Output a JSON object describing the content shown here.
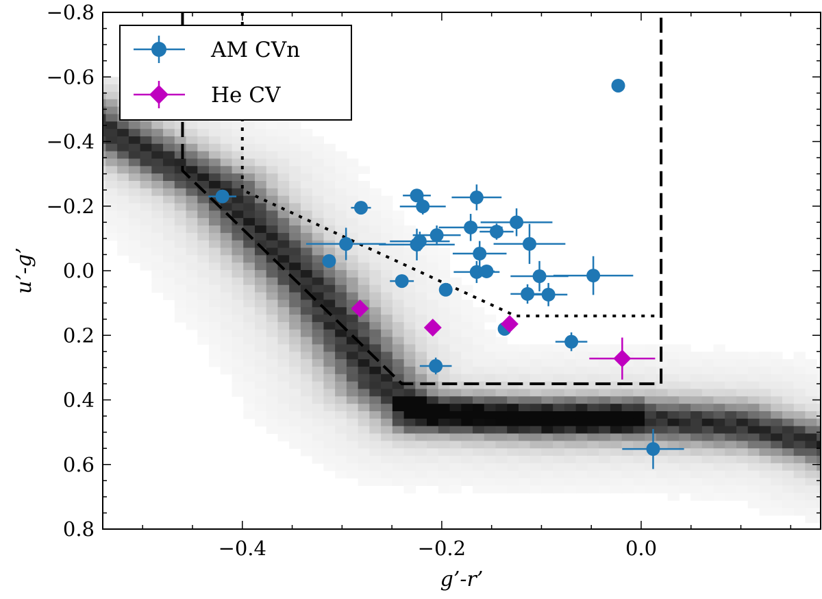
{
  "chart_data": {
    "type": "scatter",
    "title": "",
    "xlabel": "g’-r’",
    "ylabel": "u’-g’",
    "xlim": [
      -0.54,
      0.18
    ],
    "ylim": [
      0.8,
      -0.8
    ],
    "y_inverted": true,
    "grid": false,
    "legend_placement": "top-left",
    "x_ticks": [
      -0.4,
      -0.2,
      0.0
    ],
    "x_tick_labels": [
      "−0.4",
      "−0.2",
      "0.0"
    ],
    "y_ticks": [
      -0.8,
      -0.6,
      -0.4,
      -0.2,
      0.0,
      0.2,
      0.4,
      0.6,
      0.8
    ],
    "y_tick_labels": [
      "−0.8",
      "−0.6",
      "−0.4",
      "−0.2",
      "0.0",
      "0.2",
      "0.4",
      "0.6",
      "0.8"
    ],
    "background": "grayscale 2D density histogram of stellar locus",
    "series": [
      {
        "name": "AM CVn",
        "color": "#1f77b4",
        "marker": "circle",
        "points": [
          {
            "x": -0.42,
            "y": -0.23,
            "xerr": 0.014,
            "yerr": 0
          },
          {
            "x": -0.281,
            "y": -0.195,
            "xerr": 0.01,
            "yerr": 0
          },
          {
            "x": -0.313,
            "y": -0.03,
            "xerr": 0,
            "yerr": 0
          },
          {
            "x": -0.296,
            "y": -0.083,
            "xerr": 0.04,
            "yerr": 0.05
          },
          {
            "x": -0.225,
            "y": -0.233,
            "xerr": 0.014,
            "yerr": 0
          },
          {
            "x": -0.219,
            "y": -0.199,
            "xerr": 0.023,
            "yerr": 0.025
          },
          {
            "x": -0.165,
            "y": -0.227,
            "xerr": 0.025,
            "yerr": 0.04
          },
          {
            "x": -0.225,
            "y": -0.081,
            "xerr": 0.038,
            "yerr": 0.049
          },
          {
            "x": -0.222,
            "y": -0.091,
            "xerr": 0.03,
            "yerr": 0.03
          },
          {
            "x": -0.205,
            "y": -0.11,
            "xerr": 0.024,
            "yerr": 0.03
          },
          {
            "x": -0.171,
            "y": -0.134,
            "xerr": 0.032,
            "yerr": 0.042
          },
          {
            "x": -0.145,
            "y": -0.121,
            "xerr": 0.017,
            "yerr": 0.025
          },
          {
            "x": -0.125,
            "y": -0.15,
            "xerr": 0.036,
            "yerr": 0.043
          },
          {
            "x": -0.112,
            "y": -0.083,
            "xerr": 0.036,
            "yerr": 0.062
          },
          {
            "x": -0.162,
            "y": -0.053,
            "xerr": 0.027,
            "yerr": 0.039
          },
          {
            "x": -0.165,
            "y": 0.004,
            "xerr": 0.023,
            "yerr": 0.034
          },
          {
            "x": -0.155,
            "y": 0.002,
            "xerr": 0.008,
            "yerr": 0
          },
          {
            "x": -0.24,
            "y": 0.032,
            "xerr": 0.012,
            "yerr": 0
          },
          {
            "x": -0.196,
            "y": 0.059,
            "xerr": 0,
            "yerr": 0
          },
          {
            "x": -0.102,
            "y": 0.017,
            "xerr": 0.029,
            "yerr": 0.047
          },
          {
            "x": -0.048,
            "y": 0.015,
            "xerr": 0.04,
            "yerr": 0.06
          },
          {
            "x": -0.114,
            "y": 0.072,
            "xerr": 0.017,
            "yerr": 0.03
          },
          {
            "x": -0.093,
            "y": 0.074,
            "xerr": 0.019,
            "yerr": 0.036
          },
          {
            "x": -0.137,
            "y": 0.18,
            "xerr": 0,
            "yerr": 0
          },
          {
            "x": -0.07,
            "y": 0.22,
            "xerr": 0.016,
            "yerr": 0.029
          },
          {
            "x": -0.206,
            "y": 0.295,
            "xerr": 0.016,
            "yerr": 0.026
          },
          {
            "x": 0.012,
            "y": 0.552,
            "xerr": 0.031,
            "yerr": 0.062
          },
          {
            "x": -0.023,
            "y": -0.573,
            "xerr": 0,
            "yerr": 0
          }
        ]
      },
      {
        "name": "He CV",
        "color": "#bf00bf",
        "marker": "diamond",
        "points": [
          {
            "x": -0.282,
            "y": 0.117,
            "xerr": 0,
            "yerr": 0
          },
          {
            "x": -0.209,
            "y": 0.176,
            "xerr": 0,
            "yerr": 0
          },
          {
            "x": -0.132,
            "y": 0.165,
            "xerr": 0.006,
            "yerr": 0
          },
          {
            "x": -0.019,
            "y": 0.272,
            "xerr": 0.033,
            "yerr": 0.065
          }
        ]
      }
    ],
    "selection_boxes": [
      {
        "style": "dashed",
        "vertices": [
          [
            -0.46,
            -0.8
          ],
          [
            -0.46,
            -0.31
          ],
          [
            -0.24,
            0.35
          ],
          [
            0.02,
            0.35
          ],
          [
            0.02,
            -0.8
          ]
        ]
      },
      {
        "style": "dotted",
        "vertices": [
          [
            -0.4,
            -0.8
          ],
          [
            -0.4,
            -0.25
          ],
          [
            -0.126,
            0.14
          ],
          [
            0.02,
            0.14
          ]
        ]
      }
    ]
  }
}
